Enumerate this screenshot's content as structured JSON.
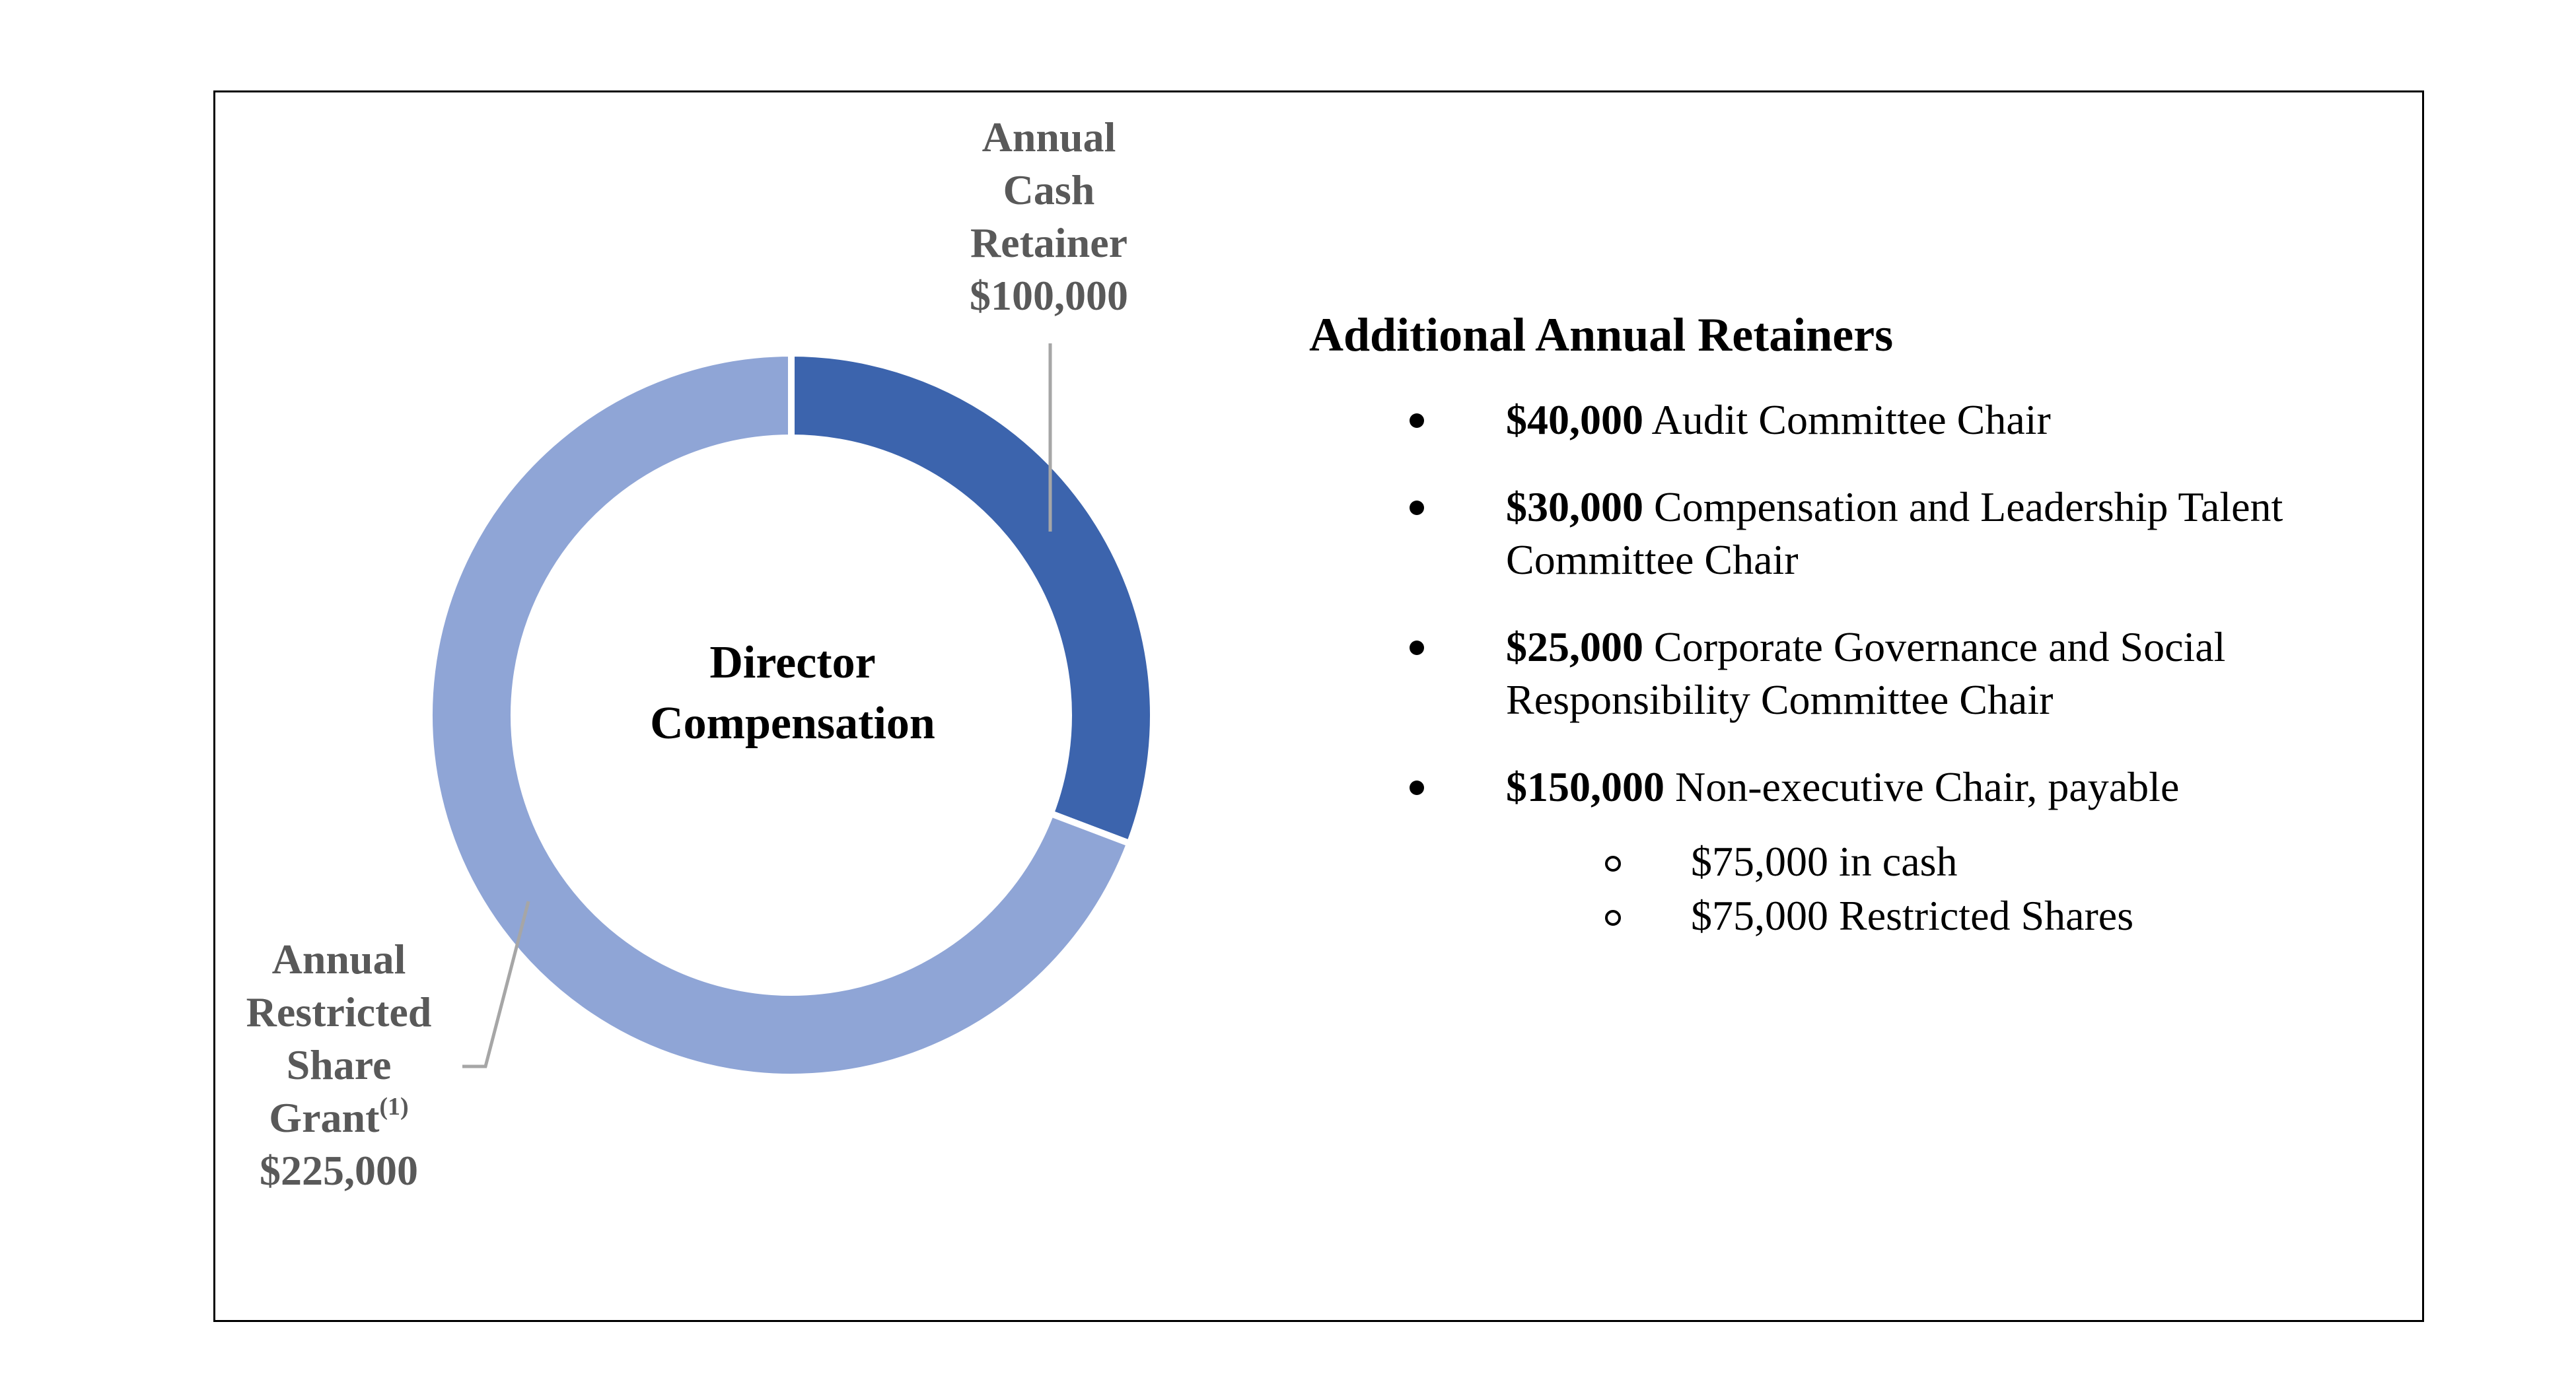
{
  "chart_data": {
    "type": "pie",
    "subtype": "donut",
    "center_title": [
      "Director",
      "Compensation"
    ],
    "slices": [
      {
        "name": "Annual Cash Retainer",
        "value": 100000,
        "value_label": "$100,000",
        "label_lines": [
          "Annual",
          "Cash",
          "Retainer"
        ],
        "color": "#3C64AD"
      },
      {
        "name": "Annual Restricted Share Grant",
        "value": 225000,
        "value_label": "$225,000",
        "label_lines": [
          "Annual",
          "Restricted",
          "Share",
          "Grant"
        ],
        "label_superscript": "(1)",
        "color": "#8FA5D6"
      }
    ]
  },
  "retainers": {
    "title": "Additional Annual Retainers",
    "items": [
      {
        "amount": "$40,000",
        "text": "Audit Committee Chair"
      },
      {
        "amount": "$30,000",
        "text": "Compensation and Leadership Talent",
        "text2": "Committee Chair"
      },
      {
        "amount": "$25,000",
        "text": "Corporate Governance and Social",
        "text2": "Responsibility Committee Chair"
      },
      {
        "amount": "$150,000",
        "text": "Non-executive Chair, payable"
      }
    ],
    "sub_items": [
      "$75,000 in cash",
      "$75,000 Restricted Shares"
    ]
  }
}
